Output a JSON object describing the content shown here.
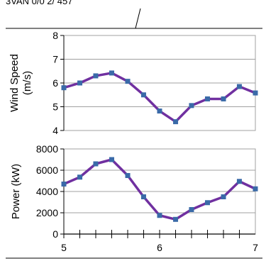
{
  "header": {
    "clipped_text": "3VAN 0/0 2/ 457"
  },
  "chart_data": [
    {
      "type": "line",
      "ylabel": "Wind Speed (m/s)",
      "ylabel_lines": [
        "Wind Speed",
        "(m/s)"
      ],
      "ylim": [
        4,
        8
      ],
      "yticks": [
        4,
        5,
        6,
        7,
        8
      ],
      "xlim": [
        5,
        7
      ],
      "grid": true,
      "series": [
        {
          "color": "#7030a0",
          "marker_color": "#3a6aa8",
          "x": [
            5.0,
            5.167,
            5.333,
            5.5,
            5.667,
            5.833,
            6.0,
            6.167,
            6.333,
            6.5,
            6.667,
            6.833,
            7.0
          ],
          "y": [
            5.8,
            6.0,
            6.3,
            6.42,
            6.07,
            5.5,
            4.82,
            4.37,
            5.05,
            5.33,
            5.33,
            5.85,
            5.58
          ]
        }
      ]
    },
    {
      "type": "line",
      "ylabel": "Power (kW)",
      "ylim": [
        0,
        8000
      ],
      "yticks": [
        0,
        2000,
        4000,
        6000,
        8000
      ],
      "xlim": [
        5,
        7
      ],
      "xticks": [
        5,
        6,
        7
      ],
      "xminor_step": 0.1667,
      "grid": true,
      "series": [
        {
          "color": "#7030a0",
          "marker_color": "#3a6aa8",
          "x": [
            5.0,
            5.167,
            5.333,
            5.5,
            5.667,
            5.833,
            6.0,
            6.167,
            6.333,
            6.5,
            6.667,
            6.833,
            7.0
          ],
          "y": [
            4700,
            5350,
            6600,
            7000,
            5500,
            3500,
            1750,
            1380,
            2300,
            2950,
            3500,
            4950,
            4250
          ]
        }
      ]
    }
  ]
}
